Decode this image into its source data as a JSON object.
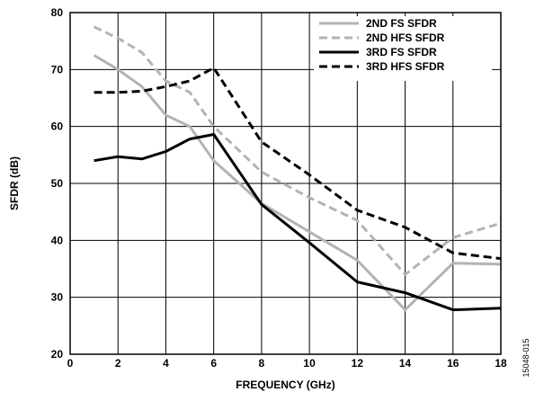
{
  "chart_data": {
    "type": "line",
    "xlabel": "FREQUENCY (GHz)",
    "ylabel": "SFDR (dB)",
    "xlim": [
      0,
      18
    ],
    "ylim": [
      20,
      80
    ],
    "xticks": [
      0,
      2,
      4,
      6,
      8,
      10,
      12,
      14,
      16,
      18
    ],
    "yticks": [
      20,
      30,
      40,
      50,
      60,
      70,
      80
    ],
    "grid": true,
    "legend_position": "top-right",
    "figure_id": "15048-015",
    "series": [
      {
        "name": "2ND FS SFDR",
        "color": "#b3b3b3",
        "dash": "solid",
        "x": [
          1,
          2,
          3,
          4,
          5,
          6,
          8,
          10,
          12,
          14,
          16,
          18
        ],
        "y": [
          72.5,
          70,
          67,
          62,
          60,
          54,
          46.5,
          41.5,
          36.5,
          27.8,
          36,
          35.8
        ]
      },
      {
        "name": "2ND HFS SFDR",
        "color": "#b3b3b3",
        "dash": "dashed",
        "x": [
          1,
          2,
          3,
          4,
          5,
          6,
          8,
          10,
          12,
          14,
          16,
          18
        ],
        "y": [
          77.5,
          75.5,
          73,
          68,
          66,
          60,
          52,
          47.5,
          43.5,
          34,
          40.5,
          43
        ]
      },
      {
        "name": "3RD FS SFDR",
        "color": "#000000",
        "dash": "solid",
        "x": [
          1,
          2,
          3,
          4,
          5,
          6,
          8,
          10,
          12,
          14,
          16,
          18
        ],
        "y": [
          54,
          54.7,
          54.3,
          55.6,
          57.8,
          58.6,
          46.3,
          39.6,
          32.7,
          30.8,
          27.8,
          28.1
        ]
      },
      {
        "name": "3RD HFS SFDR",
        "color": "#000000",
        "dash": "dashed",
        "x": [
          1,
          2,
          3,
          4,
          5,
          6,
          8,
          10,
          12,
          14,
          16,
          18
        ],
        "y": [
          66,
          66,
          66.2,
          67,
          68,
          70.3,
          57.3,
          51.5,
          45.3,
          42.3,
          37.8,
          36.8
        ]
      }
    ]
  }
}
